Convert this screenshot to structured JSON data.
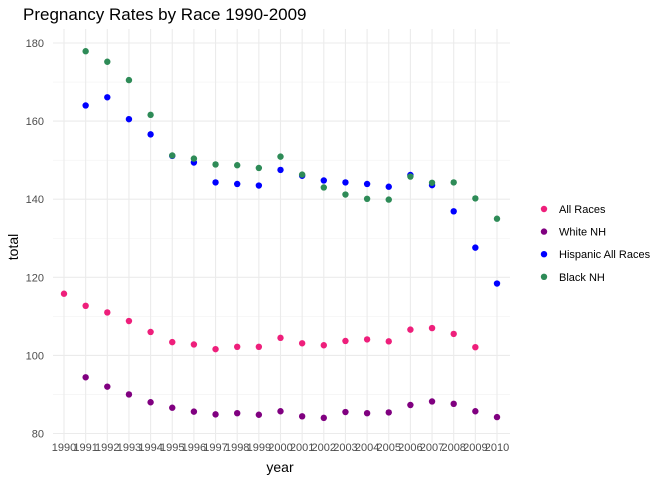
{
  "chart_data": {
    "type": "scatter",
    "title": "Pregnancy Rates by Race 1990-2009",
    "xlabel": "year",
    "ylabel": "total",
    "xlim": [
      1990,
      2010
    ],
    "ylim": [
      80,
      180
    ],
    "x_ticks": [
      "1990",
      "1991",
      "1992",
      "1993",
      "1994",
      "1995",
      "1996",
      "1997",
      "1998",
      "1999",
      "2000",
      "2001",
      "2002",
      "2003",
      "2004",
      "2005",
      "2006",
      "2007",
      "2008",
      "2009",
      "2010"
    ],
    "y_ticks": [
      80,
      100,
      120,
      140,
      160,
      180
    ],
    "grid": true,
    "legend_position": "right",
    "series": [
      {
        "name": "All Races",
        "color": "#ee1f7b",
        "x": [
          1990,
          1991,
          1992,
          1993,
          1994,
          1995,
          1996,
          1997,
          1998,
          1999,
          2000,
          2001,
          2002,
          2003,
          2004,
          2005,
          2006,
          2007,
          2008,
          2009
        ],
        "y": [
          115.8,
          112.7,
          111.0,
          108.8,
          106.0,
          103.4,
          102.8,
          101.6,
          102.2,
          102.2,
          104.5,
          103.1,
          102.6,
          103.7,
          104.1,
          103.6,
          106.6,
          107.0,
          105.5,
          102.1
        ]
      },
      {
        "name": "White NH",
        "color": "#800080",
        "x": [
          1991,
          1992,
          1993,
          1994,
          1995,
          1996,
          1997,
          1998,
          1999,
          2000,
          2001,
          2002,
          2003,
          2004,
          2005,
          2006,
          2007,
          2008,
          2009,
          2010
        ],
        "y": [
          94.4,
          92.0,
          90.0,
          88.0,
          86.6,
          85.6,
          84.9,
          85.2,
          84.8,
          85.7,
          84.4,
          84.0,
          85.5,
          85.2,
          85.4,
          87.3,
          88.2,
          87.6,
          85.7,
          84.2
        ]
      },
      {
        "name": "Hispanic All Races",
        "color": "#0000ff",
        "x": [
          1991,
          1992,
          1993,
          1994,
          1995,
          1996,
          1997,
          1998,
          1999,
          2000,
          2001,
          2002,
          2003,
          2004,
          2005,
          2006,
          2007,
          2008,
          2009,
          2010
        ],
        "y": [
          164.0,
          166.1,
          160.5,
          156.6,
          151.1,
          149.4,
          144.3,
          143.9,
          143.5,
          147.5,
          146.0,
          144.8,
          144.3,
          143.9,
          143.2,
          146.2,
          143.6,
          136.9,
          127.6,
          118.4
        ]
      },
      {
        "name": "Black NH",
        "color": "#2e8b57",
        "x": [
          1991,
          1992,
          1993,
          1994,
          1995,
          1996,
          1997,
          1998,
          1999,
          2000,
          2001,
          2002,
          2003,
          2004,
          2005,
          2006,
          2007,
          2008,
          2009,
          2010
        ],
        "y": [
          177.9,
          175.2,
          170.5,
          161.6,
          151.2,
          150.4,
          148.9,
          148.7,
          148.0,
          150.9,
          146.3,
          143.0,
          141.2,
          140.1,
          139.9,
          145.8,
          144.2,
          144.3,
          140.2,
          135.0
        ]
      }
    ]
  }
}
